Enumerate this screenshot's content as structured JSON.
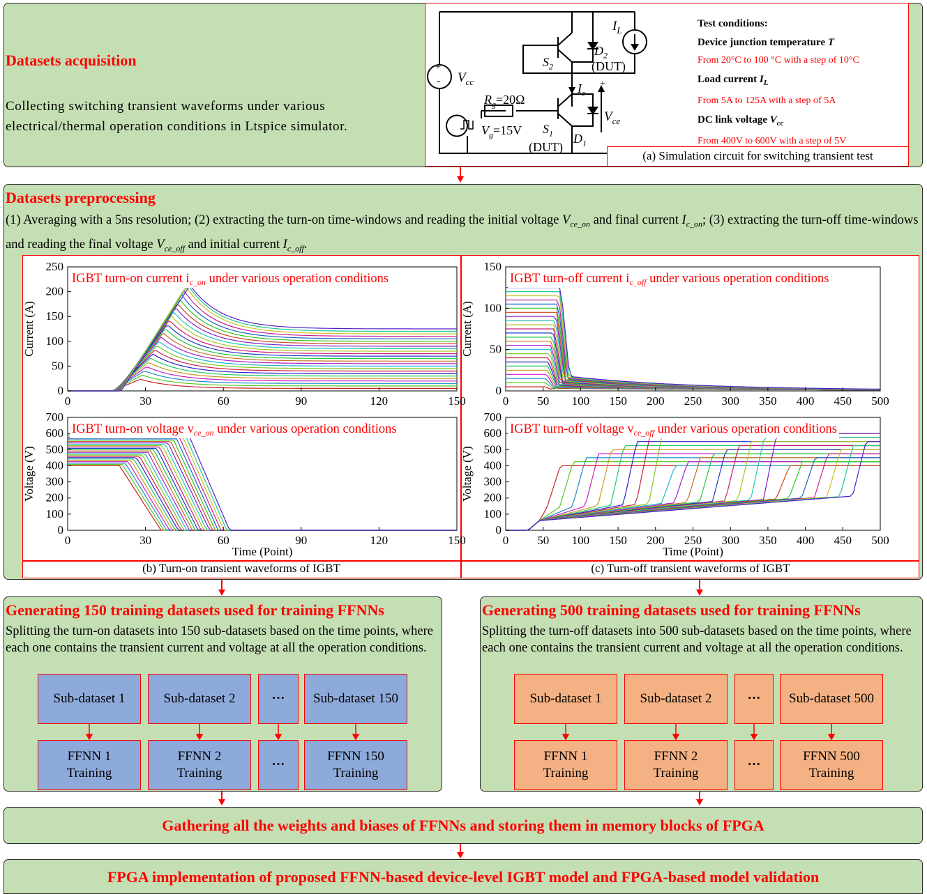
{
  "acquisition": {
    "title": "Datasets acquisition",
    "desc": "Collecting switching transient waveforms under various electrical/thermal operation conditions in Ltspice simulator."
  },
  "circuit": {
    "vcc": "V",
    "vcc_sub": "cc",
    "rg": "R",
    "rg_sub": "g",
    "rg_val": "=20Ω",
    "vg": "V",
    "vg_sub": "g",
    "vg_val": "=15V",
    "s1": "S",
    "s1_sub": "1",
    "s2": "S",
    "s2_sub": "2",
    "d1": "D",
    "d1_sub": "1",
    "d2": "D",
    "d2_sub": "2",
    "dut1": "(DUT)",
    "dut2": "(DUT)",
    "il": "I",
    "il_sub": "L",
    "ic": "I",
    "ic_sub": "c",
    "vce": "V",
    "vce_sub": "ce",
    "plus": "+",
    "minus": "-",
    "caption": "(a) Simulation circuit for switching transient test"
  },
  "conditions": {
    "heading": "Test conditions:",
    "items": [
      {
        "label": "Device junction temperature ",
        "sym": "T",
        "sym_sub": "",
        "range": "From 20°C to 100 °C with a step of 10°C"
      },
      {
        "label": "Load current ",
        "sym": "I",
        "sym_sub": "L",
        "range": "From 5A to 125A with a step of 5A"
      },
      {
        "label": "DC link voltage ",
        "sym": "V",
        "sym_sub": "cc",
        "range": "From 400V to 600V with a step of 5V"
      }
    ]
  },
  "preprocessing": {
    "title": "Datasets preprocessing",
    "t1": "(1) Averaging with a 5ns resolution; (2) extracting the turn-on time-windows and reading the initial voltage ",
    "s1": "V",
    "s1_sub": "ce_on",
    "t2": " and final current ",
    "s2": "I",
    "s2_sub": "c_on",
    "t3": "; (3) extracting the turn-off time-windows and reading the final voltage ",
    "s3": "V",
    "s3_sub": "ce_off",
    "t4": " and initial current ",
    "s4": "I",
    "s4_sub": "c_off",
    "t5": "."
  },
  "captions": {
    "b": "(b) Turn-on transient waveforms of IGBT",
    "c": "(c) Turn-off transient waveforms of IGBT"
  },
  "chart_data": [
    {
      "type": "line",
      "title": "IGBT turn-on current i",
      "title_sub": "c_on",
      "title_tail": " under various operation conditions",
      "xlabel": "",
      "ylabel": "Current (A)",
      "xlim": [
        0,
        150
      ],
      "ylim": [
        0,
        250
      ],
      "xticks": [
        0,
        30,
        60,
        90,
        120,
        150
      ],
      "yticks": [
        0,
        50,
        100,
        150,
        200,
        250
      ],
      "description_series": "25 load-current levels (5A–125A), rising after x≈17, overshoot peak up to ≈213A near x≈47, settling to final current"
    },
    {
      "type": "line",
      "title": "IGBT turn-off current i",
      "title_sub": "c_off",
      "title_tail": " under various operation conditions",
      "xlabel": "",
      "ylabel": "Current (A)",
      "xlim": [
        0,
        500
      ],
      "ylim": [
        0,
        150
      ],
      "xticks": [
        0,
        50,
        100,
        150,
        200,
        250,
        300,
        350,
        400,
        450,
        500
      ],
      "yticks": [
        0,
        50,
        100,
        150
      ],
      "description_series": "initial currents 5A–125A, falling near x≈55–80, tail decaying to ≈0 by x≈500"
    },
    {
      "type": "line",
      "title": "IGBT turn-on voltage v",
      "title_sub": "ce_on",
      "title_tail": " under various operation conditions",
      "xlabel": "Time (Point)",
      "ylabel": "Voltage (V)",
      "xlim": [
        0,
        150
      ],
      "ylim": [
        0,
        700
      ],
      "xticks": [
        0,
        30,
        60,
        90,
        120,
        150
      ],
      "yticks": [
        0,
        100,
        200,
        300,
        400,
        500,
        600,
        700
      ],
      "description_series": "initial voltages 400V–600V, falling to 0 between x≈20 and x≈65"
    },
    {
      "type": "line",
      "title": "IGBT turn-off voltage v",
      "title_sub": "ce_off",
      "title_tail": " under various operation conditions",
      "xlabel": "Time (Point)",
      "ylabel": "Voltage (V)",
      "xlim": [
        0,
        500
      ],
      "ylim": [
        0,
        700
      ],
      "xticks": [
        0,
        50,
        100,
        150,
        200,
        250,
        300,
        350,
        400,
        450,
        500
      ],
      "yticks": [
        0,
        100,
        200,
        300,
        400,
        500,
        600,
        700
      ],
      "description_series": "rising from 0 after x≈30 to final voltages 400V–600V, rise completing between x≈55 and x≈470"
    }
  ],
  "colors": {
    "panel": "#c5dfb4",
    "accent": "#ff0000",
    "blue": "#8eaadb",
    "orange": "#f4b183"
  },
  "gen150": {
    "title": "Generating 150 training datasets used for training FFNNs",
    "desc": "Splitting the turn-on datasets into 150 sub-datasets based on the time points, where each one contains the transient current and voltage at all the operation conditions.",
    "subs": [
      "Sub-dataset 1",
      "Sub-dataset 2",
      "···",
      "Sub-dataset 150"
    ],
    "ffnn": [
      [
        "FFNN 1",
        "Training"
      ],
      [
        "FFNN 2",
        "Training"
      ],
      [
        "···",
        ""
      ],
      [
        "FFNN 150",
        "Training"
      ]
    ]
  },
  "gen500": {
    "title": "Generating 500 training datasets used for training FFNNs",
    "desc": "Splitting the turn-off datasets into 500 sub-datasets based on the time points, where each one contains the transient current and voltage at all the operation conditions.",
    "subs": [
      "Sub-dataset 1",
      "Sub-dataset 2",
      "···",
      "Sub-dataset 500"
    ],
    "ffnn": [
      [
        "FFNN 1",
        "Training"
      ],
      [
        "FFNN 2",
        "Training"
      ],
      [
        "···",
        ""
      ],
      [
        "FFNN 500",
        "Training"
      ]
    ]
  },
  "gather": {
    "text": "Gathering all the weights and biases of FFNNs and storing them in memory blocks of FPGA"
  },
  "fpga": {
    "text": "FPGA implementation of proposed  FFNN-based device-level IGBT model and FPGA-based model validation"
  }
}
